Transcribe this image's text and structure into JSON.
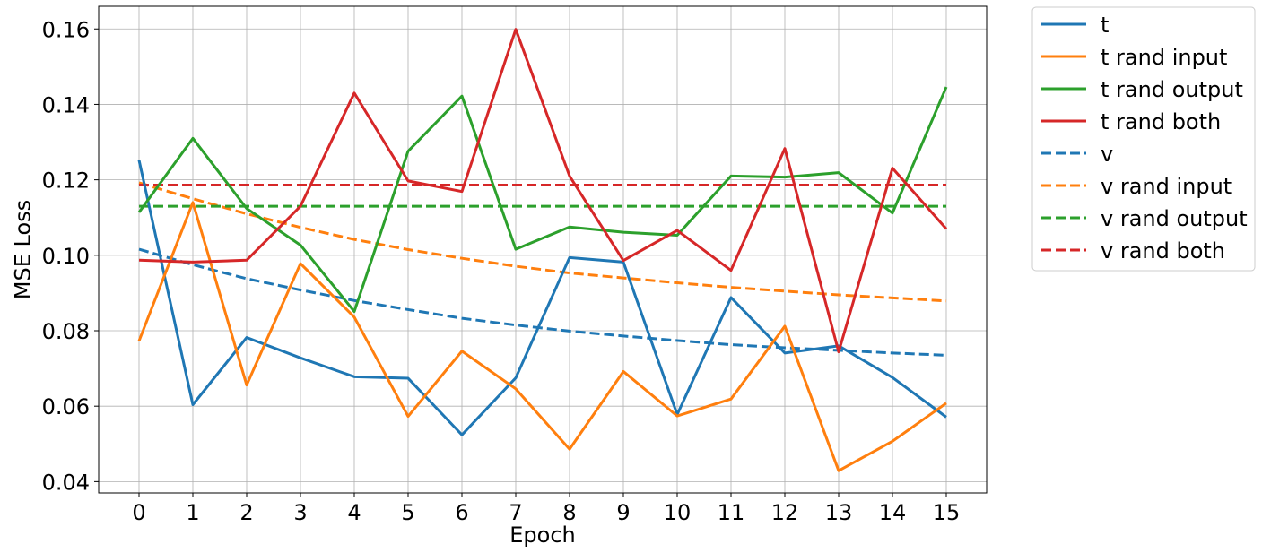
{
  "chart_data": {
    "type": "line",
    "title": "",
    "xlabel": "Epoch",
    "ylabel": "MSE Loss",
    "x": [
      0,
      1,
      2,
      3,
      4,
      5,
      6,
      7,
      8,
      9,
      10,
      11,
      12,
      13,
      14,
      15
    ],
    "xticks": [
      "0",
      "1",
      "2",
      "3",
      "4",
      "5",
      "6",
      "7",
      "8",
      "9",
      "10",
      "11",
      "12",
      "13",
      "14",
      "15"
    ],
    "xlim": [
      -0.75,
      15.75
    ],
    "yticks": [
      "0.04",
      "0.06",
      "0.08",
      "0.10",
      "0.12",
      "0.14",
      "0.16"
    ],
    "ylim": [
      0.037,
      0.166
    ],
    "grid": true,
    "legend_position": "outside-right-top",
    "series": [
      {
        "name": "t",
        "color": "#1f77b4",
        "dash": "solid",
        "values": [
          0.1252,
          0.0604,
          0.0782,
          0.0728,
          0.0678,
          0.0674,
          0.0524,
          0.0675,
          0.0994,
          0.0982,
          0.0578,
          0.0888,
          0.0741,
          0.076,
          0.0676,
          0.0571
        ]
      },
      {
        "name": "t rand input",
        "color": "#ff7f0e",
        "dash": "solid",
        "values": [
          0.0773,
          0.114,
          0.0656,
          0.0978,
          0.0836,
          0.0573,
          0.0746,
          0.0646,
          0.0486,
          0.0692,
          0.0574,
          0.0619,
          0.0812,
          0.0429,
          0.0507,
          0.0608
        ]
      },
      {
        "name": "t rand output",
        "color": "#2ca02c",
        "dash": "solid",
        "values": [
          0.1114,
          0.131,
          0.1124,
          0.1027,
          0.0851,
          0.1276,
          0.1422,
          0.1016,
          0.1075,
          0.1061,
          0.1053,
          0.121,
          0.1207,
          0.1219,
          0.1112,
          0.1446
        ]
      },
      {
        "name": "t rand both",
        "color": "#d62728",
        "dash": "solid",
        "values": [
          0.0987,
          0.0982,
          0.0987,
          0.113,
          0.143,
          0.1197,
          0.1169,
          0.1599,
          0.121,
          0.0986,
          0.1066,
          0.096,
          0.1283,
          0.0744,
          0.1231,
          0.107
        ]
      },
      {
        "name": "v",
        "color": "#1f77b4",
        "dash": "dashed",
        "values": [
          0.1016,
          0.0975,
          0.0938,
          0.0908,
          0.088,
          0.0856,
          0.0833,
          0.0815,
          0.0799,
          0.0786,
          0.0774,
          0.0763,
          0.0755,
          0.0748,
          0.0741,
          0.0735
        ]
      },
      {
        "name": "v rand input",
        "color": "#ff7f0e",
        "dash": "dashed",
        "values": [
          0.1192,
          0.115,
          0.111,
          0.1074,
          0.1042,
          0.1015,
          0.0992,
          0.0971,
          0.0953,
          0.094,
          0.0927,
          0.0915,
          0.0905,
          0.0895,
          0.0887,
          0.0879
        ]
      },
      {
        "name": "v rand output",
        "color": "#2ca02c",
        "dash": "dashed",
        "values": [
          0.113,
          0.113,
          0.113,
          0.113,
          0.113,
          0.113,
          0.113,
          0.113,
          0.113,
          0.113,
          0.113,
          0.113,
          0.113,
          0.113,
          0.113,
          0.113
        ]
      },
      {
        "name": "v rand both",
        "color": "#d62728",
        "dash": "dashed",
        "values": [
          0.1186,
          0.1186,
          0.1186,
          0.1186,
          0.1186,
          0.1186,
          0.1186,
          0.1186,
          0.1186,
          0.1186,
          0.1186,
          0.1186,
          0.1186,
          0.1186,
          0.1186,
          0.1186
        ]
      }
    ]
  }
}
